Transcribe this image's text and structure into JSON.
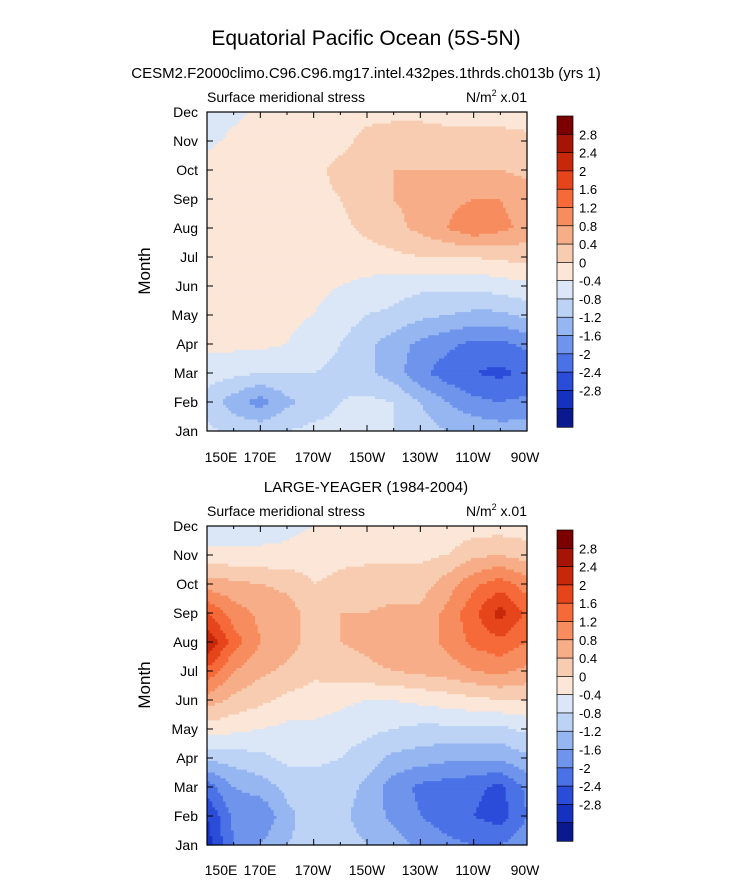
{
  "figure": {
    "title": "Equatorial Pacific Ocean (5S-5N)"
  },
  "colorbar": {
    "labels": [
      "2.8",
      "2.4",
      "2",
      "1.6",
      "1.2",
      "0.8",
      "0.4",
      "0",
      "-0.4",
      "-0.8",
      "-1.2",
      "-1.6",
      "-2",
      "-2.4",
      "-2.8"
    ],
    "colors": [
      "#7b0000",
      "#a51405",
      "#c8280a",
      "#e6441a",
      "#f56a38",
      "#f78d5e",
      "#f6ad88",
      "#f8ccb0",
      "#fbe6d8",
      "#dbe7f7",
      "#bcd3f6",
      "#96b6f1",
      "#6e94ec",
      "#4a71e6",
      "#2a4cd8",
      "#1630c0",
      "#0a1a8e"
    ]
  },
  "chart_data": [
    {
      "type": "heatmap",
      "title": "CESM2.F2000climo.C96.C96.mg17.intel.432pes.1thrds.ch013b (yrs 1)",
      "left_string": "Surface meridional stress",
      "units_prefix": "N/m",
      "units_exp": "2",
      "units_suffix": " x.01",
      "ylabel": "Month",
      "x_tick_labels": [
        "150E",
        "170E",
        "170W",
        "150W",
        "130W",
        "110W",
        "90W"
      ],
      "y_tick_labels": [
        "Jan",
        "Feb",
        "Mar",
        "Apr",
        "May",
        "Jun",
        "Jul",
        "Aug",
        "Sep",
        "Oct",
        "Nov",
        "Dec"
      ],
      "x": [
        150,
        160,
        170,
        180,
        190,
        200,
        210,
        220,
        230,
        240,
        250,
        260,
        270
      ],
      "xlim": [
        150,
        270
      ],
      "y": [
        1,
        2,
        3,
        4,
        5,
        6,
        7,
        8,
        9,
        10,
        11,
        12
      ],
      "ylim": [
        1,
        12
      ],
      "levels": [
        -2.8,
        -2.4,
        -2,
        -1.6,
        -1.2,
        -0.8,
        -0.4,
        0,
        0.4,
        0.8,
        1.2,
        1.6,
        2,
        2.4,
        2.8
      ],
      "z": [
        [
          -0.3,
          -0.5,
          -0.5,
          -0.4,
          -0.3,
          -0.3,
          -0.2,
          -0.4,
          -0.6,
          -0.8,
          -0.9,
          -1.0,
          -1.0
        ],
        [
          -0.6,
          -1.0,
          -1.4,
          -0.9,
          -0.6,
          -0.4,
          -0.3,
          -0.4,
          -0.8,
          -1.2,
          -1.5,
          -1.6,
          -1.5
        ],
        [
          -0.2,
          -0.3,
          -0.4,
          -0.4,
          -0.4,
          -0.5,
          -0.7,
          -1.0,
          -1.5,
          -1.8,
          -2.0,
          -2.1,
          -1.9
        ],
        [
          0.1,
          0.1,
          0.1,
          0.0,
          -0.2,
          -0.4,
          -0.7,
          -1.0,
          -1.3,
          -1.5,
          -1.7,
          -1.7,
          -1.5
        ],
        [
          0.1,
          0.2,
          0.2,
          0.1,
          0.0,
          -0.2,
          -0.4,
          -0.5,
          -0.7,
          -0.8,
          -0.9,
          -0.9,
          -0.7
        ],
        [
          0.2,
          0.2,
          0.2,
          0.2,
          0.1,
          0.0,
          -0.1,
          -0.2,
          -0.3,
          -0.3,
          -0.3,
          -0.2,
          -0.1
        ],
        [
          0.3,
          0.2,
          0.2,
          0.3,
          0.2,
          0.2,
          0.2,
          0.3,
          0.4,
          0.4,
          0.4,
          0.5,
          0.5
        ],
        [
          0.4,
          0.2,
          0.2,
          0.2,
          0.2,
          0.3,
          0.5,
          0.7,
          0.9,
          1.2,
          1.5,
          1.3,
          1.1
        ],
        [
          0.3,
          0.2,
          0.2,
          0.2,
          0.3,
          0.4,
          0.6,
          0.8,
          0.9,
          1.1,
          1.2,
          1.2,
          1.0
        ],
        [
          0.2,
          0.2,
          0.2,
          0.2,
          0.3,
          0.5,
          0.6,
          0.8,
          0.8,
          0.8,
          0.8,
          0.8,
          0.7
        ],
        [
          -0.1,
          0.1,
          0.2,
          0.2,
          0.2,
          0.3,
          0.5,
          0.6,
          0.6,
          0.5,
          0.5,
          0.5,
          0.5
        ],
        [
          -0.3,
          -0.1,
          0.1,
          0.2,
          0.2,
          0.2,
          0.3,
          0.3,
          0.3,
          0.3,
          0.3,
          0.3,
          0.2
        ]
      ]
    },
    {
      "type": "heatmap",
      "title": "LARGE-YEAGER (1984-2004)",
      "left_string": "Surface meridional stress",
      "units_prefix": "N/m",
      "units_exp": "2",
      "units_suffix": " x.01",
      "ylabel": "Month",
      "x_tick_labels": [
        "150E",
        "170E",
        "170W",
        "150W",
        "130W",
        "110W",
        "90W"
      ],
      "y_tick_labels": [
        "Jan",
        "Feb",
        "Mar",
        "Apr",
        "May",
        "Jun",
        "Jul",
        "Aug",
        "Sep",
        "Oct",
        "Nov",
        "Dec"
      ],
      "x": [
        150,
        160,
        170,
        180,
        190,
        200,
        210,
        220,
        230,
        240,
        250,
        260,
        270
      ],
      "xlim": [
        150,
        270
      ],
      "y": [
        1,
        2,
        3,
        4,
        5,
        6,
        7,
        8,
        9,
        10,
        11,
        12
      ],
      "ylim": [
        1,
        12
      ],
      "levels": [
        -2.8,
        -2.4,
        -2,
        -1.6,
        -1.2,
        -0.8,
        -0.4,
        0,
        0.4,
        0.8,
        1.2,
        1.6,
        2,
        2.4,
        2.8
      ],
      "z": [
        [
          -2.6,
          -1.6,
          -1.2,
          -0.8,
          -0.7,
          -0.6,
          -0.8,
          -1.0,
          -1.3,
          -1.5,
          -1.6,
          -1.6,
          -1.3
        ],
        [
          -2.4,
          -1.5,
          -1.6,
          -0.9,
          -0.6,
          -0.7,
          -1.0,
          -1.3,
          -1.6,
          -1.8,
          -2.0,
          -2.2,
          -1.6
        ],
        [
          -1.8,
          -1.2,
          -1.0,
          -0.7,
          -0.6,
          -0.6,
          -0.9,
          -1.4,
          -1.7,
          -1.8,
          -1.9,
          -2.1,
          -1.5
        ],
        [
          -0.7,
          -0.6,
          -0.5,
          -0.3,
          -0.3,
          -0.4,
          -0.6,
          -0.9,
          -1.0,
          -1.1,
          -1.1,
          -1.1,
          -0.9
        ],
        [
          0.2,
          0.1,
          0.0,
          -0.1,
          -0.1,
          -0.2,
          -0.3,
          -0.4,
          -0.5,
          -0.5,
          -0.5,
          -0.5,
          -0.3
        ],
        [
          1.0,
          0.7,
          0.5,
          0.3,
          0.2,
          0.1,
          0.0,
          0.0,
          0.1,
          0.2,
          0.3,
          0.4,
          0.4
        ],
        [
          1.9,
          1.2,
          0.9,
          0.7,
          0.5,
          0.6,
          0.7,
          0.8,
          0.9,
          1.0,
          1.2,
          1.3,
          1.1
        ],
        [
          2.8,
          1.8,
          1.2,
          1.0,
          0.6,
          0.8,
          0.9,
          1.1,
          1.0,
          1.3,
          1.7,
          1.9,
          1.6
        ],
        [
          2.0,
          1.4,
          1.1,
          1.0,
          0.6,
          0.8,
          0.8,
          0.9,
          0.9,
          1.3,
          1.9,
          2.6,
          1.9
        ],
        [
          1.0,
          0.9,
          0.8,
          0.7,
          0.4,
          0.5,
          0.6,
          0.6,
          0.6,
          1.0,
          1.5,
          1.8,
          1.4
        ],
        [
          0.2,
          0.1,
          0.1,
          0.1,
          0.2,
          0.3,
          0.3,
          0.3,
          0.3,
          0.4,
          0.7,
          0.8,
          0.6
        ],
        [
          -0.4,
          -0.3,
          -0.2,
          -0.1,
          0.0,
          0.1,
          0.2,
          0.2,
          0.1,
          0.1,
          0.2,
          0.2,
          0.2
        ]
      ]
    }
  ]
}
